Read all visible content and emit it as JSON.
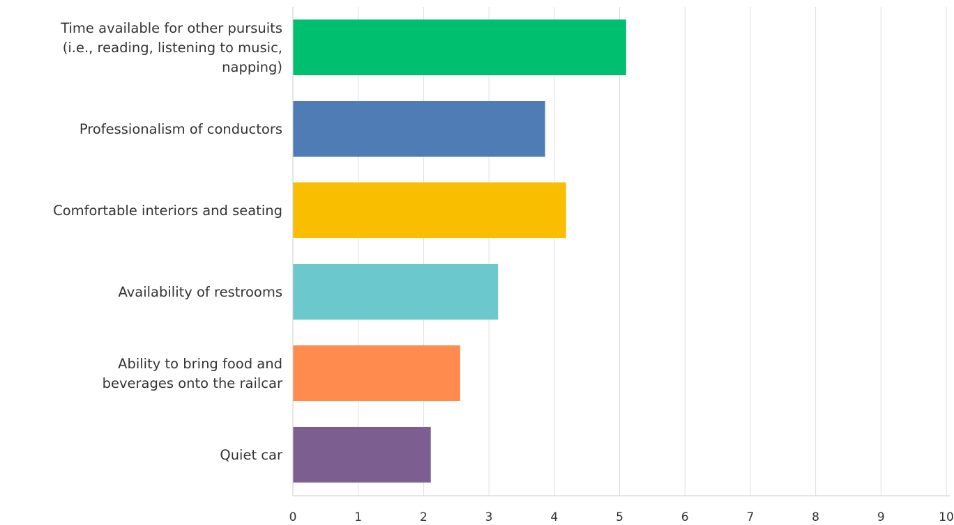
{
  "chart_data": {
    "type": "bar",
    "orientation": "horizontal",
    "title": "",
    "xlabel": "",
    "ylabel": "",
    "categories": [
      "Time available for other pursuits (i.e., reading, listening to music, napping)",
      "Professionalism of conductors",
      "Comfortable interiors and seating",
      "Availability of restrooms",
      "Ability to bring food and beverages onto the railcar",
      "Quiet car"
    ],
    "category_label_lines": [
      [
        "Time available for other pursuits",
        "(i.e., reading, listening to music,",
        "napping)"
      ],
      [
        "Professionalism of conductors"
      ],
      [
        "Comfortable interiors and seating"
      ],
      [
        "Availability of restrooms"
      ],
      [
        "Ability to bring food and",
        "beverages onto the railcar"
      ],
      [
        "Quiet car"
      ]
    ],
    "values": [
      5.1,
      3.86,
      4.18,
      3.14,
      2.56,
      2.11
    ],
    "colors": [
      "#00bf6f",
      "#507cb6",
      "#f9be00",
      "#6bc8cd",
      "#ff8b4f",
      "#7d5e90"
    ],
    "xlim": [
      0,
      10
    ],
    "xticks": [
      "0",
      "1",
      "2",
      "3",
      "4",
      "5",
      "6",
      "7",
      "8",
      "9",
      "10"
    ],
    "grid": true,
    "legend": "none",
    "gridline_color": "#e0e0e0",
    "axis_color": "#cccccc",
    "text_color": "#333333"
  }
}
